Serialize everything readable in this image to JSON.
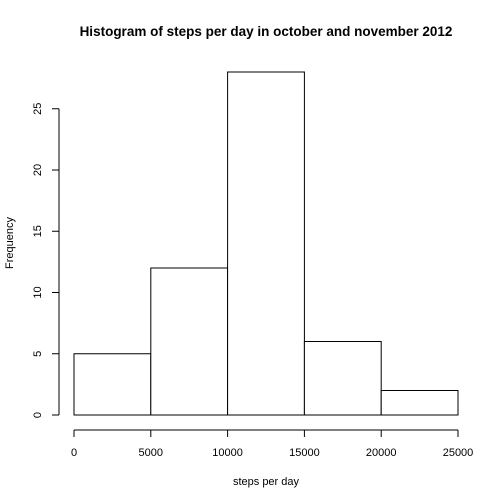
{
  "chart_data": {
    "type": "bar",
    "title": "Histogram of steps per day in october and november 2012",
    "xlabel": "steps per day",
    "ylabel": "Frequency",
    "bins": [
      {
        "from": 0,
        "to": 5000,
        "count": 5
      },
      {
        "from": 5000,
        "to": 10000,
        "count": 12
      },
      {
        "from": 10000,
        "to": 15000,
        "count": 28
      },
      {
        "from": 15000,
        "to": 20000,
        "count": 6
      },
      {
        "from": 20000,
        "to": 25000,
        "count": 2
      }
    ],
    "xlim": [
      0,
      25000
    ],
    "ylim": [
      0,
      28
    ],
    "x_ticks": [
      0,
      5000,
      10000,
      15000,
      20000,
      25000
    ],
    "y_ticks": [
      0,
      5,
      10,
      15,
      20,
      25
    ],
    "grid": false,
    "legend": "none",
    "bar_fill": "#ffffff",
    "bar_stroke": "#000000"
  }
}
